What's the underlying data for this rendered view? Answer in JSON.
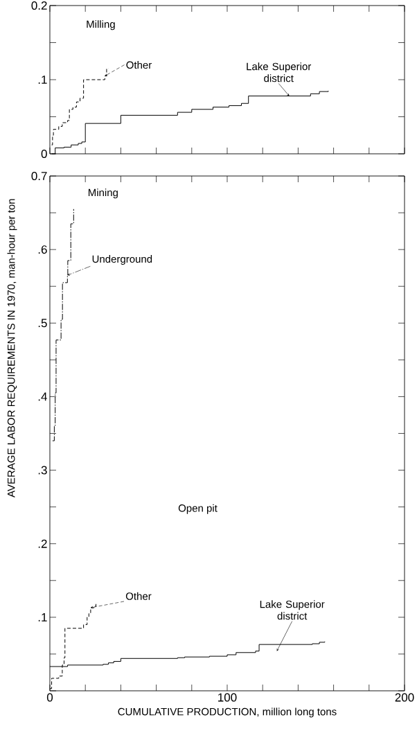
{
  "chart_data": [
    {
      "type": "step",
      "title": "Milling",
      "xlim": [
        0,
        200
      ],
      "ylim": [
        0,
        0.2
      ],
      "tick_labels": "y",
      "xticks": [
        {
          "value": 0,
          "label": null
        },
        {
          "value": 20,
          "label": null
        },
        {
          "value": 40,
          "label": null
        },
        {
          "value": 60,
          "label": null
        },
        {
          "value": 80,
          "label": null
        },
        {
          "value": 100,
          "label": null
        },
        {
          "value": 120,
          "label": null
        },
        {
          "value": 140,
          "label": null
        },
        {
          "value": 160,
          "label": null
        },
        {
          "value": 180,
          "label": null
        },
        {
          "value": 200,
          "label": null
        }
      ],
      "yticks": [
        0,
        {
          "value": 0.05,
          "label": null
        },
        {
          "value": 0.1,
          "label": ".1"
        },
        {
          "value": 0.15,
          "label": null
        },
        0.2
      ],
      "series": [
        {
          "name": "Other",
          "color": "#000000",
          "line_style": "dashed",
          "x": [
            1,
            1.5,
            2,
            5,
            7,
            10,
            11,
            13,
            15,
            17,
            19,
            31,
            32,
            33
          ],
          "values": [
            0.012,
            0.025,
            0.033,
            0.037,
            0.042,
            0.045,
            0.06,
            0.063,
            0.07,
            0.075,
            0.1,
            0.105,
            0.115,
            0.115
          ]
        },
        {
          "name": "Lake Superior district",
          "color": "#000000",
          "line_style": "solid",
          "x": [
            1,
            3,
            8,
            12,
            16,
            18,
            20,
            40,
            72,
            80,
            92,
            101,
            108,
            112,
            147,
            152,
            157
          ],
          "values": [
            0,
            0.008,
            0.009,
            0.012,
            0.014,
            0.016,
            0.041,
            0.052,
            0.056,
            0.06,
            0.063,
            0.065,
            0.068,
            0.078,
            0.081,
            0.084,
            0.085
          ]
        }
      ]
    },
    {
      "type": "step",
      "title": "Mining",
      "xlabel": "CUMULATIVE PRODUCTION, million long tons",
      "ylabel": "AVERAGE LABOR REQUIREMENTS IN 1970, man-hour  per ton",
      "annotations": [
        "Open pit"
      ],
      "xlim": [
        0,
        200
      ],
      "ylim": [
        0,
        0.7
      ],
      "xticks": [
        0,
        {
          "value": 20,
          "label": null
        },
        {
          "value": 40,
          "label": null
        },
        {
          "value": 60,
          "label": null
        },
        {
          "value": 80,
          "label": null
        },
        100,
        {
          "value": 120,
          "label": null
        },
        {
          "value": 140,
          "label": null
        },
        {
          "value": 160,
          "label": null
        },
        {
          "value": 180,
          "label": null
        },
        200
      ],
      "yticks": [
        {
          "value": 0,
          "label": null
        },
        {
          "value": 0.05,
          "label": null
        },
        {
          "value": 0.1,
          "label": ".1"
        },
        {
          "value": 0.15,
          "label": null
        },
        {
          "value": 0.2,
          "label": ".2"
        },
        {
          "value": 0.25,
          "label": null
        },
        {
          "value": 0.3,
          "label": ".3"
        },
        {
          "value": 0.35,
          "label": null
        },
        {
          "value": 0.4,
          "label": ".4"
        },
        {
          "value": 0.45,
          "label": null
        },
        {
          "value": 0.5,
          "label": ".5"
        },
        {
          "value": 0.55,
          "label": null
        },
        {
          "value": 0.6,
          "label": ".6"
        },
        {
          "value": 0.65,
          "label": null
        },
        0.7
      ],
      "series": [
        {
          "name": "Underground",
          "color": "#000000",
          "line_style": "dashdot",
          "x": [
            1.5,
            2.5,
            3,
            3.5,
            6.3,
            7.1,
            9.9,
            10.1,
            11.8,
            13.4
          ],
          "values": [
            0.34,
            0.36,
            0.405,
            0.477,
            0.505,
            0.555,
            0.565,
            0.585,
            0.635,
            0.655
          ]
        },
        {
          "name": "Other",
          "color": "#000000",
          "line_style": "dashed",
          "x": [
            0,
            1,
            5,
            7,
            8,
            8.5,
            19,
            21,
            22,
            23,
            25,
            26
          ],
          "values": [
            0.003,
            0.017,
            0.02,
            0.035,
            0.045,
            0.085,
            0.09,
            0.1,
            0.105,
            0.113,
            0.115,
            0.118
          ]
        },
        {
          "name": "Lake Superior district",
          "color": "#000000",
          "line_style": "solid",
          "x": [
            0,
            10,
            30,
            33,
            36,
            40,
            72,
            76,
            90,
            100,
            105,
            116,
            118,
            148,
            152,
            155
          ],
          "values": [
            0.033,
            0.035,
            0.036,
            0.038,
            0.04,
            0.044,
            0.045,
            0.046,
            0.047,
            0.049,
            0.052,
            0.054,
            0.063,
            0.064,
            0.066,
            0.067
          ]
        }
      ]
    }
  ]
}
